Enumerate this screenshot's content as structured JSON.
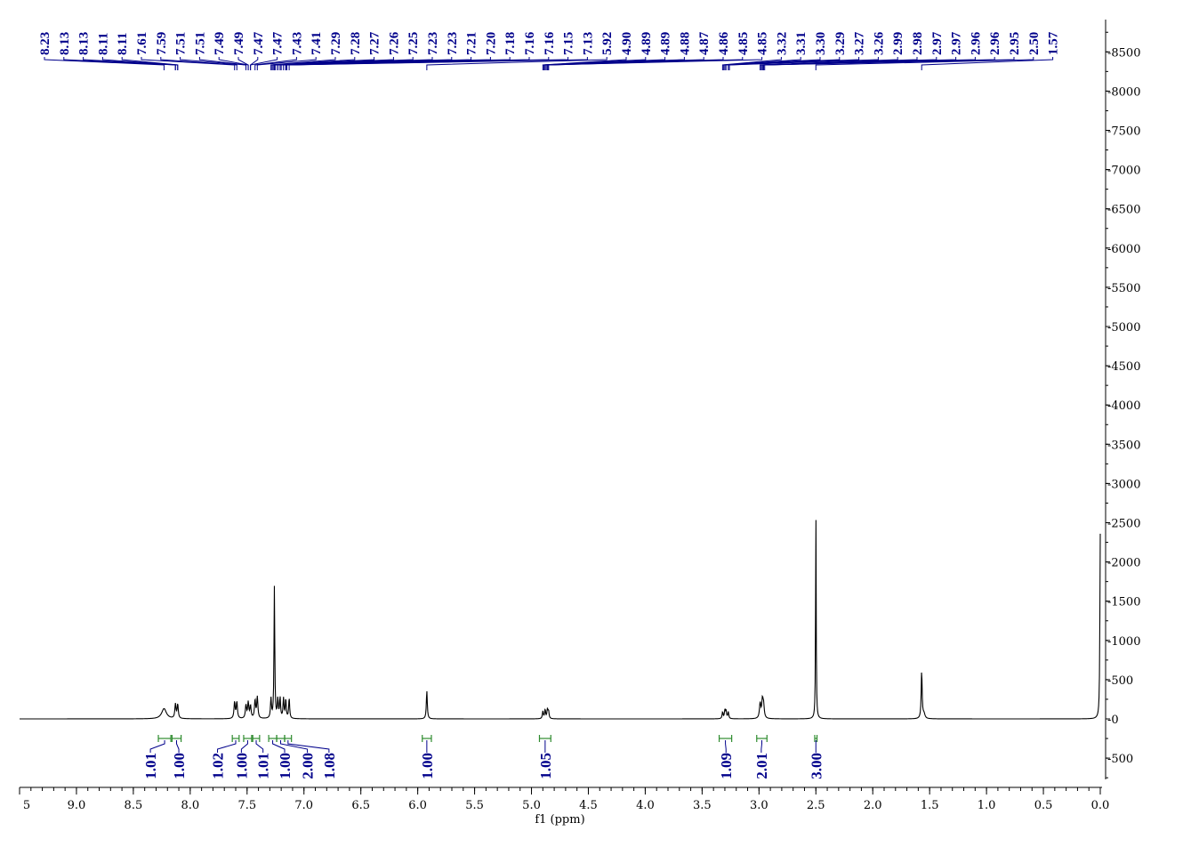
{
  "chart_data": {
    "type": "line",
    "xlabel": "f1 (ppm)",
    "ylabel": "",
    "title": "",
    "xlim": [
      9.5,
      0.0
    ],
    "ylim": [
      -800,
      8700
    ],
    "x_ticks": [
      "9.0",
      "8.5",
      "8.0",
      "7.5",
      "7.0",
      "6.5",
      "6.0",
      "5.5",
      "5.0",
      "4.5",
      "4.0",
      "3.5",
      "3.0",
      "2.5",
      "2.0",
      "1.5",
      "1.0",
      "0.5",
      "0.0"
    ],
    "x_tick_values": [
      9.0,
      8.5,
      8.0,
      7.5,
      7.0,
      6.5,
      6.0,
      5.5,
      5.0,
      4.5,
      4.0,
      3.5,
      3.0,
      2.5,
      2.0,
      1.5,
      1.0,
      0.5,
      0.0
    ],
    "edge_tick_label": "5",
    "y_ticks": [
      -500,
      0,
      500,
      1000,
      1500,
      2000,
      2500,
      3000,
      3500,
      4000,
      4500,
      5000,
      5500,
      6000,
      6500,
      7000,
      7500,
      8000,
      8500
    ],
    "y_tick_labels": [
      "-500",
      "-0",
      "-500",
      "-1000",
      "-1500",
      "-2000",
      "-2500",
      "-3000",
      "-3500",
      "-4000",
      "-4500",
      "-5000",
      "-5500",
      "-6000",
      "-6500",
      "-7000",
      "-7500",
      "-8000",
      "-8500"
    ],
    "grid": false,
    "peaks": [
      {
        "ppm": 8.23,
        "height": 130,
        "width": 0.025
      },
      {
        "ppm": 8.13,
        "height": 180,
        "width": 0.006
      },
      {
        "ppm": 8.11,
        "height": 180,
        "width": 0.006
      },
      {
        "ppm": 7.61,
        "height": 210,
        "width": 0.006
      },
      {
        "ppm": 7.59,
        "height": 210,
        "width": 0.006
      },
      {
        "ppm": 7.51,
        "height": 170,
        "width": 0.006
      },
      {
        "ppm": 7.49,
        "height": 200,
        "width": 0.006
      },
      {
        "ppm": 7.47,
        "height": 160,
        "width": 0.006
      },
      {
        "ppm": 7.43,
        "height": 230,
        "width": 0.006
      },
      {
        "ppm": 7.41,
        "height": 270,
        "width": 0.006
      },
      {
        "ppm": 7.29,
        "height": 250,
        "width": 0.005
      },
      {
        "ppm": 7.26,
        "height": 1680,
        "width": 0.004
      },
      {
        "ppm": 7.23,
        "height": 240,
        "width": 0.005
      },
      {
        "ppm": 7.21,
        "height": 260,
        "width": 0.005
      },
      {
        "ppm": 7.18,
        "height": 250,
        "width": 0.005
      },
      {
        "ppm": 7.16,
        "height": 240,
        "width": 0.005
      },
      {
        "ppm": 7.13,
        "height": 260,
        "width": 0.005
      },
      {
        "ppm": 5.92,
        "height": 360,
        "width": 0.005
      },
      {
        "ppm": 4.9,
        "height": 95,
        "width": 0.005
      },
      {
        "ppm": 4.88,
        "height": 115,
        "width": 0.005
      },
      {
        "ppm": 4.86,
        "height": 115,
        "width": 0.005
      },
      {
        "ppm": 4.85,
        "height": 95,
        "width": 0.005
      },
      {
        "ppm": 3.32,
        "height": 85,
        "width": 0.005
      },
      {
        "ppm": 3.3,
        "height": 100,
        "width": 0.005
      },
      {
        "ppm": 3.29,
        "height": 100,
        "width": 0.005
      },
      {
        "ppm": 3.27,
        "height": 85,
        "width": 0.005
      },
      {
        "ppm": 2.99,
        "height": 190,
        "width": 0.007
      },
      {
        "ppm": 2.97,
        "height": 220,
        "width": 0.007
      },
      {
        "ppm": 2.96,
        "height": 160,
        "width": 0.007
      },
      {
        "ppm": 2.5,
        "height": 2700,
        "width": 0.003
      },
      {
        "ppm": 1.57,
        "height": 610,
        "width": 0.005
      },
      {
        "ppm": 1.55,
        "height": 60,
        "width": 0.01
      },
      {
        "ppm": 0.0,
        "height": 2360,
        "width": 0.004
      }
    ],
    "peak_labels": [
      "8.23",
      "8.13",
      "8.13",
      "8.11",
      "8.11",
      "7.61",
      "7.59",
      "7.51",
      "7.51",
      "7.49",
      "7.49",
      "7.47",
      "7.47",
      "7.43",
      "7.41",
      "7.29",
      "7.28",
      "7.27",
      "7.26",
      "7.25",
      "7.23",
      "7.23",
      "7.21",
      "7.20",
      "7.18",
      "7.16",
      "7.16",
      "7.15",
      "7.13",
      "5.92",
      "4.90",
      "4.89",
      "4.89",
      "4.88",
      "4.87",
      "4.86",
      "4.85",
      "4.85",
      "3.32",
      "3.31",
      "3.30",
      "3.29",
      "3.27",
      "3.26",
      "2.99",
      "2.98",
      "2.97",
      "2.97",
      "2.96",
      "2.96",
      "2.95",
      "2.50",
      "1.57"
    ],
    "peak_label_targets": [
      8.23,
      8.13,
      8.13,
      8.11,
      8.11,
      7.61,
      7.59,
      7.51,
      7.51,
      7.49,
      7.49,
      7.47,
      7.47,
      7.43,
      7.41,
      7.29,
      7.28,
      7.27,
      7.26,
      7.25,
      7.23,
      7.23,
      7.21,
      7.2,
      7.18,
      7.16,
      7.16,
      7.15,
      7.13,
      5.92,
      4.9,
      4.89,
      4.89,
      4.88,
      4.87,
      4.86,
      4.85,
      4.85,
      3.32,
      3.31,
      3.3,
      3.29,
      3.27,
      3.26,
      2.99,
      2.98,
      2.97,
      2.97,
      2.96,
      2.96,
      2.95,
      2.5,
      1.57
    ],
    "integrals": [
      {
        "label": "1.01",
        "from": 8.28,
        "to": 8.17
      },
      {
        "label": "1.00",
        "from": 8.16,
        "to": 8.08
      },
      {
        "label": "1.02",
        "from": 7.63,
        "to": 7.57
      },
      {
        "label": "1.00",
        "from": 7.53,
        "to": 7.46
      },
      {
        "label": "1.01",
        "from": 7.45,
        "to": 7.39
      },
      {
        "label": "1.00",
        "from": 7.31,
        "to": 7.24
      },
      {
        "label": "2.00",
        "from": 7.24,
        "to": 7.17
      },
      {
        "label": "1.08",
        "from": 7.17,
        "to": 7.11
      },
      {
        "label": "1.00",
        "from": 5.96,
        "to": 5.88
      },
      {
        "label": "1.05",
        "from": 4.93,
        "to": 4.83
      },
      {
        "label": "1.09",
        "from": 3.35,
        "to": 3.24
      },
      {
        "label": "2.01",
        "from": 3.02,
        "to": 2.93
      },
      {
        "label": "3.00",
        "from": 2.51,
        "to": 2.49
      }
    ],
    "integral_label_positions": [
      8.35,
      8.1,
      7.76,
      7.55,
      7.36,
      7.17,
      6.97,
      6.78,
      5.92,
      4.88,
      3.29,
      2.98,
      2.5
    ]
  }
}
